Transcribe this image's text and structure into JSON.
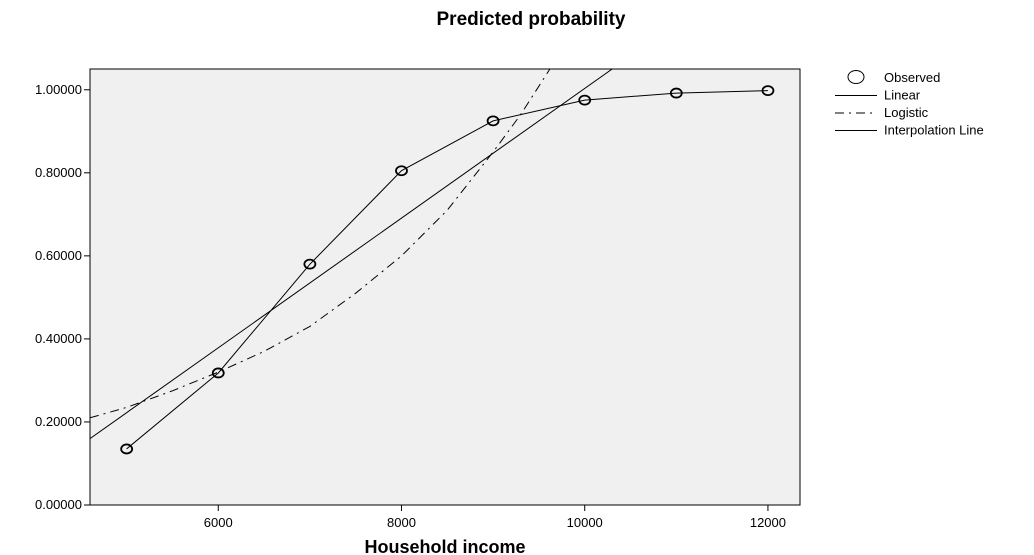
{
  "chart_data": {
    "type": "scatter",
    "title": "Predicted probability",
    "xlabel": "Household income",
    "ylabel": "",
    "xlim": [
      4600,
      12350
    ],
    "ylim": [
      0,
      1.05
    ],
    "xticks": [
      6000,
      8000,
      10000,
      12000
    ],
    "xtick_labels": [
      "6000",
      "8000",
      "10000",
      "12000"
    ],
    "yticks": [
      0,
      0.2,
      0.4,
      0.6,
      0.8,
      1.0
    ],
    "ytick_labels": [
      "0.00000",
      "0.20000",
      "0.40000",
      "0.60000",
      "0.80000",
      "1.00000"
    ],
    "grid": false,
    "plot_background": "#f0f0f0",
    "legend_position": "right",
    "series": [
      {
        "name": "Observed",
        "kind": "points",
        "x": [
          5000,
          6000,
          7000,
          8000,
          9000,
          10000,
          11000,
          12000
        ],
        "y": [
          0.135,
          0.318,
          0.58,
          0.805,
          0.925,
          0.975,
          0.992,
          0.998
        ]
      },
      {
        "name": "Linear",
        "kind": "line",
        "x": [
          4600,
          10300
        ],
        "y": [
          0.16,
          1.05
        ]
      },
      {
        "name": "Logistic",
        "kind": "dashdot-curve",
        "x": [
          4600,
          5000,
          5500,
          6000,
          6500,
          7000,
          7500,
          8000,
          8500,
          9000,
          9300,
          9620
        ],
        "y": [
          0.21,
          0.235,
          0.275,
          0.32,
          0.37,
          0.43,
          0.51,
          0.6,
          0.71,
          0.85,
          0.94,
          1.05
        ]
      },
      {
        "name": "Interpolation Line",
        "kind": "polyline",
        "x": [
          5000,
          6000,
          7000,
          8000,
          9000,
          10000,
          11000,
          12000
        ],
        "y": [
          0.135,
          0.318,
          0.58,
          0.805,
          0.925,
          0.975,
          0.992,
          0.998
        ]
      }
    ]
  }
}
